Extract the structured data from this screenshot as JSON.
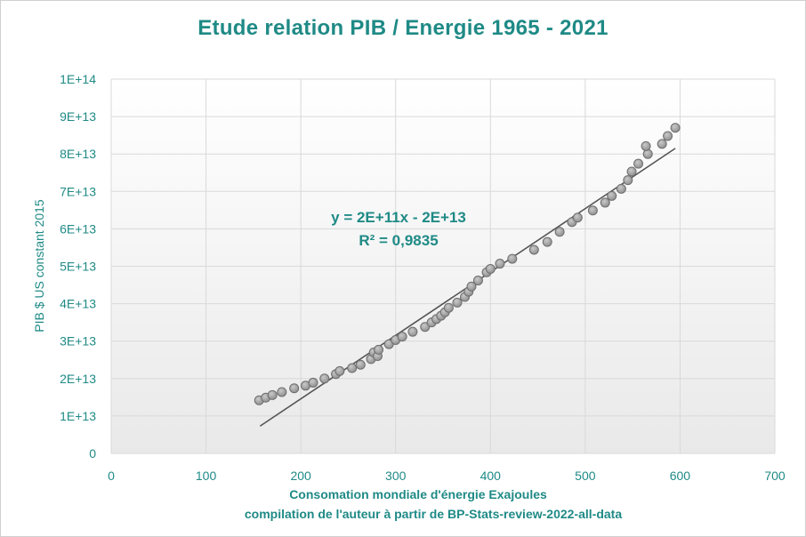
{
  "chart_data": {
    "type": "scatter",
    "title": "Etude relation  PIB / Energie 1965 - 2021",
    "xlabel": "Consomation mondiale d'énergie Exajoules",
    "xlabel2": "compilation de l'auteur à partir de BP-Stats-review-2022-all-data",
    "ylabel": "PIB $ US constant 2015",
    "xlim": [
      0,
      700
    ],
    "ylim": [
      0,
      100000000000000.0
    ],
    "x_ticks": [
      "0",
      "100",
      "200",
      "300",
      "400",
      "500",
      "600",
      "700"
    ],
    "y_ticks": [
      "0",
      "1E+13",
      "2E+13",
      "3E+13",
      "4E+13",
      "5E+13",
      "6E+13",
      "7E+13",
      "8E+13",
      "9E+13",
      "1E+14"
    ],
    "grid": true,
    "trendline": {
      "x": [
        157,
        595
      ],
      "y": [
        7300000000000.0,
        81500000000000.0
      ],
      "equation": "y = 2E+11x - 2E+13",
      "r2": "R² = 0,9835"
    },
    "points": [
      {
        "x": 156,
        "y": 14200000000000.0
      },
      {
        "x": 163,
        "y": 14900000000000.0
      },
      {
        "x": 170,
        "y": 15600000000000.0
      },
      {
        "x": 180,
        "y": 16400000000000.0
      },
      {
        "x": 193,
        "y": 17400000000000.0
      },
      {
        "x": 205,
        "y": 18100000000000.0
      },
      {
        "x": 213,
        "y": 18900000000000.0
      },
      {
        "x": 225,
        "y": 20000000000000.0
      },
      {
        "x": 237,
        "y": 21200000000000.0
      },
      {
        "x": 241,
        "y": 22000000000000.0
      },
      {
        "x": 254,
        "y": 22800000000000.0
      },
      {
        "x": 263,
        "y": 23700000000000.0
      },
      {
        "x": 274,
        "y": 25200000000000.0
      },
      {
        "x": 277,
        "y": 27000000000000.0
      },
      {
        "x": 281,
        "y": 26000000000000.0
      },
      {
        "x": 282,
        "y": 27700000000000.0
      },
      {
        "x": 293,
        "y": 29200000000000.0
      },
      {
        "x": 300,
        "y": 30300000000000.0
      },
      {
        "x": 307,
        "y": 31200000000000.0
      },
      {
        "x": 318,
        "y": 32500000000000.0
      },
      {
        "x": 331,
        "y": 33800000000000.0
      },
      {
        "x": 338,
        "y": 35000000000000.0
      },
      {
        "x": 343,
        "y": 35900000000000.0
      },
      {
        "x": 348,
        "y": 36800000000000.0
      },
      {
        "x": 352,
        "y": 37700000000000.0
      },
      {
        "x": 356,
        "y": 38900000000000.0
      },
      {
        "x": 365,
        "y": 40300000000000.0
      },
      {
        "x": 373,
        "y": 41800000000000.0
      },
      {
        "x": 377,
        "y": 43200000000000.0
      },
      {
        "x": 380,
        "y": 44600000000000.0
      },
      {
        "x": 387,
        "y": 46200000000000.0
      },
      {
        "x": 396,
        "y": 48400000000000.0
      },
      {
        "x": 400,
        "y": 49300000000000.0
      },
      {
        "x": 410,
        "y": 50700000000000.0
      },
      {
        "x": 423,
        "y": 52000000000000.0
      },
      {
        "x": 446,
        "y": 54400000000000.0
      },
      {
        "x": 460,
        "y": 56500000000000.0
      },
      {
        "x": 473,
        "y": 59200000000000.0
      },
      {
        "x": 486,
        "y": 61800000000000.0
      },
      {
        "x": 492,
        "y": 63000000000000.0
      },
      {
        "x": 508,
        "y": 64900000000000.0
      },
      {
        "x": 521,
        "y": 67000000000000.0
      },
      {
        "x": 528,
        "y": 68800000000000.0
      },
      {
        "x": 538,
        "y": 70700000000000.0
      },
      {
        "x": 545,
        "y": 73000000000000.0
      },
      {
        "x": 549,
        "y": 75300000000000.0
      },
      {
        "x": 556,
        "y": 77400000000000.0
      },
      {
        "x": 566,
        "y": 80000000000000.0
      },
      {
        "x": 564,
        "y": 82100000000000.0
      },
      {
        "x": 581,
        "y": 82700000000000.0
      },
      {
        "x": 587,
        "y": 84800000000000.0
      },
      {
        "x": 595,
        "y": 87000000000000.0
      }
    ]
  }
}
